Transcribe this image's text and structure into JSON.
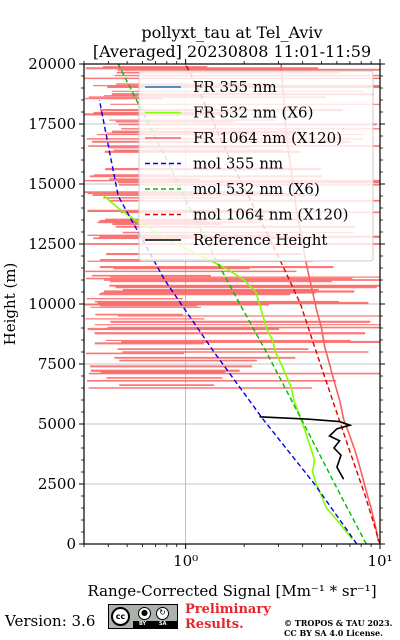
{
  "chart_data": {
    "type": "line",
    "title_line1": "pollyxt_tau at Tel_Aviv",
    "title_line2": "[Averaged] 20230808 11:01-11:59",
    "xlabel": "Range-Corrected Signal [Mm⁻¹ * sr⁻¹]",
    "ylabel": "Height (m)",
    "xscale": "log",
    "xlim": [
      0.3,
      10
    ],
    "ylim": [
      0,
      20000
    ],
    "x_ticks": [
      1,
      10
    ],
    "x_tick_labels": [
      "10⁰",
      "10¹"
    ],
    "y_ticks": [
      0,
      2500,
      5000,
      7500,
      10000,
      12500,
      15000,
      17500,
      20000
    ],
    "y_tick_labels": [
      "0",
      "2500",
      "5000",
      "7500",
      "10000",
      "12500",
      "15000",
      "17500",
      "20000"
    ],
    "grid": true,
    "legend_position": "top-right",
    "series": [
      {
        "name": "FR 355 nm",
        "color": "#1f77b4",
        "style": "solid",
        "x": [],
        "y": []
      },
      {
        "name": "FR 532 nm (X6)",
        "color": "#80ff00",
        "style": "solid",
        "x": [
          7.2,
          6.0,
          5.3,
          5.0,
          4.7,
          4.5,
          4.6,
          4.4,
          4.2,
          4.0,
          3.8,
          3.6,
          3.5,
          3.3,
          3.1,
          2.9,
          2.8,
          2.6,
          2.5,
          2.4,
          2.3,
          2.0,
          1.6,
          1.2,
          0.9,
          0.7,
          0.55,
          0.45,
          0.38
        ],
        "y": [
          200,
          1000,
          1500,
          2000,
          2500,
          3000,
          3500,
          4000,
          4500,
          5000,
          5500,
          6000,
          6500,
          7000,
          7500,
          8000,
          8500,
          9000,
          9500,
          10000,
          10500,
          11000,
          11500,
          12000,
          12500,
          13000,
          13500,
          14000,
          14500
        ]
      },
      {
        "name": "FR 1064 nm (X120)",
        "color": "#f86060",
        "style": "solid",
        "x": [
          9.8,
          9.5,
          9.0,
          8.5,
          8.0,
          7.5,
          7.0,
          6.5,
          6.2,
          5.8,
          5.5,
          5.2,
          5.0,
          4.7,
          4.5,
          4.3,
          4.1,
          3.9,
          3.7,
          3.5,
          3.3,
          3.2,
          3.1
        ],
        "y": [
          100,
          700,
          1500,
          2200,
          3000,
          3800,
          4500,
          5200,
          6000,
          6800,
          7500,
          8200,
          9000,
          9800,
          10500,
          11200,
          12000,
          13000,
          14000,
          15500,
          17000,
          18500,
          20000
        ]
      },
      {
        "name": "mol 355 nm",
        "color": "#0000ee",
        "style": "dashed",
        "x": [
          7.6,
          4.6,
          2.5,
          1.4,
          0.78,
          0.45,
          0.36
        ],
        "y": [
          0,
          2500,
          5200,
          8000,
          11000,
          14500,
          18500
        ]
      },
      {
        "name": "mol 532 nm (X6)",
        "color": "#00bb00",
        "style": "dashed",
        "x": [
          8.5,
          6.3,
          4.7,
          3.5,
          2.6,
          1.9,
          1.4,
          1.05,
          0.8,
          0.6,
          0.45
        ],
        "y": [
          0,
          2000,
          4000,
          6000,
          8000,
          10000,
          12000,
          14000,
          16000,
          18000,
          20000
        ]
      },
      {
        "name": "mol 1064 nm (X120)",
        "color": "#dd0000",
        "style": "dashed",
        "x": [
          10.0,
          8.4,
          6.9,
          5.7,
          4.7,
          3.9,
          3.2,
          2.6,
          2.1,
          1.7,
          1.4,
          1.15,
          1.0
        ],
        "y": [
          0,
          2000,
          4000,
          6000,
          8000,
          10000,
          11500,
          13000,
          14500,
          16000,
          17500,
          19000,
          20000
        ]
      },
      {
        "name": "Reference Height",
        "color": "#000000",
        "style": "solid",
        "x": [
          6.5,
          6.0,
          6.3,
          5.8,
          6.2,
          5.5,
          6.0,
          7.0,
          6.2,
          4.3,
          2.4
        ],
        "y": [
          2700,
          3200,
          3700,
          4000,
          4300,
          4500,
          4800,
          4950,
          5100,
          5200,
          5300
        ]
      }
    ]
  },
  "footer": {
    "version": "Version: 3.6",
    "cc_label": "cc",
    "by_label": "BY",
    "sa_label": "SA",
    "prelim_line1": "Preliminary",
    "prelim_line2": "Results.",
    "copyright_line1": "© TROPOS & TAU 2023.",
    "copyright_line2": "CC BY SA 4.0 License."
  }
}
